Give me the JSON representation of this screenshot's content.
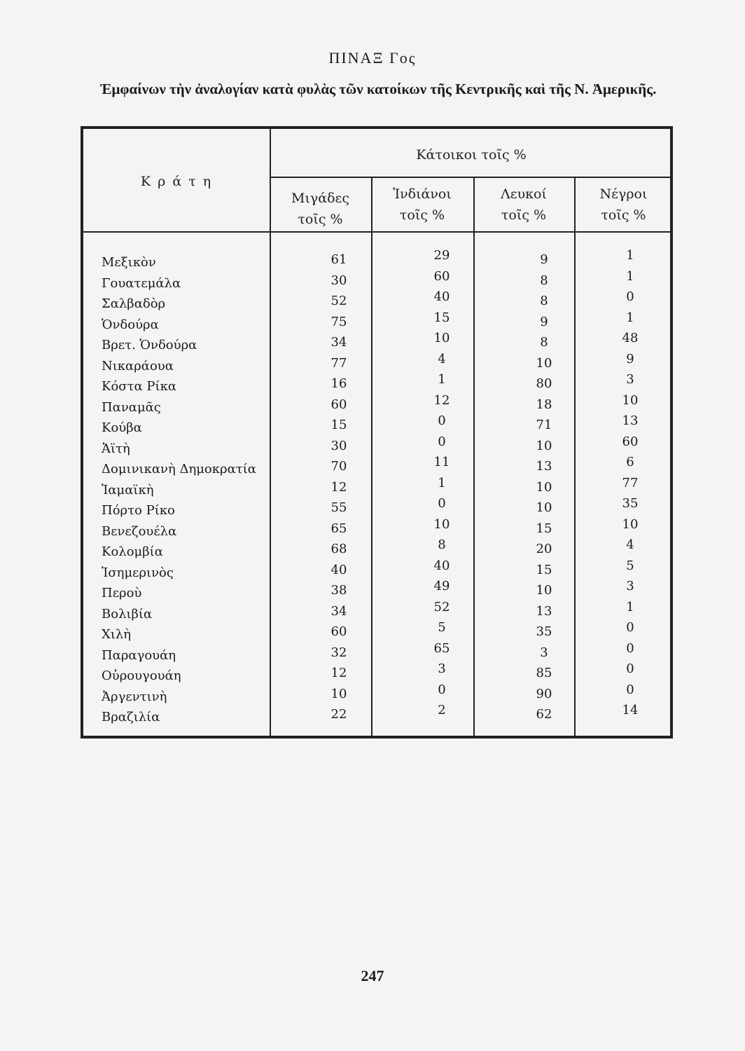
{
  "title": "ΠΙΝΑΞ Γος",
  "subtitle": "Ἐμφαίνων τὴν ἀναλογίαν κατὰ φυλὰς τῶν κατοίκων τῆς Κεντρικῆς καὶ τῆς Ν. Ἀμερικῆς.",
  "table": {
    "headers": {
      "states": "Κ ρ ά τ η",
      "group": "Κάτοικοι τοῖς %",
      "columns": [
        "Μιγάδες",
        "Ἰνδιάνοι",
        "Λευκοί",
        "Νέγροι"
      ],
      "unit": "τοῖς %"
    },
    "rows": [
      {
        "state": "Μεξικὸν",
        "values": [
          "61",
          "29",
          "9",
          "1"
        ]
      },
      {
        "state": "Γουατεμάλα",
        "values": [
          "30",
          "60",
          "8",
          "1"
        ]
      },
      {
        "state": "Σαλβαδὸρ",
        "values": [
          "52",
          "40",
          "8",
          "0"
        ]
      },
      {
        "state": "Ὁνδούρα",
        "values": [
          "75",
          "15",
          "9",
          "1"
        ]
      },
      {
        "state": "Βρετ. Ὁνδούρα",
        "values": [
          "34",
          "10",
          "8",
          "48"
        ]
      },
      {
        "state": "Νικαράουα",
        "values": [
          "77",
          "4",
          "10",
          "9"
        ]
      },
      {
        "state": "Κόστα Ρίκα",
        "values": [
          "16",
          "1",
          "80",
          "3"
        ]
      },
      {
        "state": "Παναμᾶς",
        "values": [
          "60",
          "12",
          "18",
          "10"
        ]
      },
      {
        "state": "Κούβα",
        "values": [
          "15",
          "0",
          "71",
          "13"
        ]
      },
      {
        "state": "Ἁϊτὴ",
        "values": [
          "30",
          "0",
          "10",
          "60"
        ]
      },
      {
        "state": "Δομινικανὴ Δημοκρατία",
        "values": [
          "70",
          "11",
          "13",
          "6"
        ]
      },
      {
        "state": "Ἰαμαϊκὴ",
        "values": [
          "12",
          "1",
          "10",
          "77"
        ]
      },
      {
        "state": "Πόρτο Ρίκο",
        "values": [
          "55",
          "0",
          "10",
          "35"
        ]
      },
      {
        "state": "Βενεζουέλα",
        "values": [
          "65",
          "10",
          "15",
          "10"
        ]
      },
      {
        "state": "Κολομβία",
        "values": [
          "68",
          "8",
          "20",
          "4"
        ]
      },
      {
        "state": "Ἰσημερινὸς",
        "values": [
          "40",
          "40",
          "15",
          "5"
        ]
      },
      {
        "state": "Περοὺ",
        "values": [
          "38",
          "49",
          "10",
          "3"
        ]
      },
      {
        "state": "Βολιβία",
        "values": [
          "34",
          "52",
          "13",
          "1"
        ]
      },
      {
        "state": "Χιλὴ",
        "values": [
          "60",
          "5",
          "35",
          "0"
        ]
      },
      {
        "state": "Παραγουάη",
        "values": [
          "32",
          "65",
          "3",
          "0"
        ]
      },
      {
        "state": "Οὐρουγουάη",
        "values": [
          "12",
          "3",
          "85",
          "0"
        ]
      },
      {
        "state": "Ἀργεντινὴ",
        "values": [
          "10",
          "0",
          "90",
          "0"
        ]
      },
      {
        "state": "Βραζιλία",
        "values": [
          "22",
          "2",
          "62",
          "14"
        ]
      }
    ]
  },
  "page_number": "247"
}
